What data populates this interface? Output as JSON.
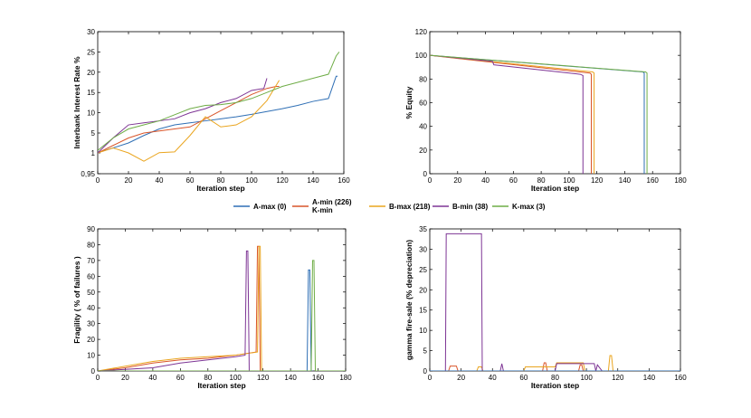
{
  "colors": {
    "A-max": "#2f6fb5",
    "A-min": "#d9552a",
    "B-max": "#eaa51f",
    "B-min": "#7e3595",
    "K-max": "#6fad47"
  },
  "legend": {
    "items": [
      {
        "key": "A-max",
        "label": "A-max (0)"
      },
      {
        "key": "A-min",
        "label": "A-min (226)",
        "label2": "K-min"
      },
      {
        "key": "B-max",
        "label": "B-max (218)"
      },
      {
        "key": "B-min",
        "label": "B-min (38)"
      },
      {
        "key": "K-max",
        "label": "K-max (3)"
      }
    ]
  },
  "chart_data": [
    {
      "id": "interest",
      "type": "line",
      "xlabel": "Iteration step",
      "ylabel": "Interbank Interest Rate %",
      "xlim": [
        0,
        160
      ],
      "xticks": [
        0,
        20,
        40,
        60,
        80,
        100,
        120,
        140,
        160
      ],
      "y_tick_labels": [
        "0,95",
        "1",
        "5",
        "10",
        "15",
        "20",
        "25",
        "30"
      ],
      "series": [
        {
          "name": "A-max",
          "x": [
            0,
            10,
            20,
            30,
            40,
            50,
            60,
            70,
            80,
            90,
            100,
            110,
            120,
            130,
            140,
            150,
            155,
            156
          ],
          "y": [
            1.05,
            2.0,
            3.0,
            4.5,
            6.0,
            7.0,
            7.5,
            8.0,
            8.5,
            9.0,
            9.6,
            10.3,
            11.0,
            11.8,
            12.8,
            13.5,
            19.0,
            19.0
          ]
        },
        {
          "name": "A-min",
          "x": [
            0,
            10,
            20,
            30,
            40,
            50,
            60,
            70,
            80,
            90,
            100,
            110,
            116,
            118
          ],
          "y": [
            1.0,
            2.5,
            4.0,
            5.0,
            5.5,
            6.0,
            6.5,
            8.5,
            10.5,
            12.5,
            14.5,
            16.0,
            16.5,
            16.5
          ]
        },
        {
          "name": "B-max",
          "x": [
            0,
            10,
            20,
            30,
            40,
            50,
            60,
            70,
            80,
            90,
            100,
            110,
            118
          ],
          "y": [
            1.0,
            2.0,
            1.0,
            0.98,
            1.05,
            1.2,
            4.5,
            9.0,
            6.5,
            7.0,
            9.0,
            13.0,
            18.0
          ]
        },
        {
          "name": "B-min",
          "x": [
            0,
            10,
            20,
            30,
            40,
            50,
            60,
            70,
            80,
            90,
            100,
            108,
            110
          ],
          "y": [
            1.0,
            4.0,
            7.0,
            7.5,
            8.0,
            8.5,
            10.0,
            11.0,
            12.5,
            13.5,
            15.5,
            16.0,
            18.5
          ]
        },
        {
          "name": "K-max",
          "x": [
            0,
            10,
            20,
            30,
            40,
            50,
            60,
            70,
            80,
            90,
            100,
            110,
            120,
            130,
            140,
            150,
            155,
            157
          ],
          "y": [
            1.5,
            4.0,
            6.0,
            7.0,
            8.0,
            9.5,
            11.0,
            11.8,
            12.0,
            12.5,
            13.5,
            15.0,
            16.5,
            17.5,
            18.5,
            19.5,
            24.0,
            25.0
          ]
        }
      ]
    },
    {
      "id": "equity",
      "type": "line",
      "xlabel": "Iteration step",
      "ylabel": "% Equity",
      "xlim": [
        0,
        180
      ],
      "ylim": [
        0,
        120
      ],
      "xticks": [
        0,
        20,
        40,
        60,
        80,
        100,
        120,
        140,
        160,
        180
      ],
      "yticks": [
        0,
        20,
        40,
        60,
        80,
        100,
        120
      ],
      "series": [
        {
          "name": "A-max",
          "x": [
            0,
            153,
            154,
            154
          ],
          "y": [
            100,
            86,
            85,
            0
          ]
        },
        {
          "name": "A-min",
          "x": [
            0,
            115,
            116,
            116
          ],
          "y": [
            100,
            85,
            84,
            0
          ]
        },
        {
          "name": "B-max",
          "x": [
            0,
            117,
            118,
            118
          ],
          "y": [
            100,
            86,
            85,
            0
          ]
        },
        {
          "name": "B-min",
          "x": [
            0,
            45,
            46,
            108,
            110,
            110
          ],
          "y": [
            100,
            95,
            92,
            84,
            83,
            0
          ]
        },
        {
          "name": "K-max",
          "x": [
            0,
            155,
            156,
            156
          ],
          "y": [
            100,
            86,
            85,
            0
          ]
        }
      ]
    },
    {
      "id": "fragility",
      "type": "line",
      "xlabel": "Iteration step",
      "ylabel": "Fragility  ( % of failures )",
      "xlim": [
        0,
        180
      ],
      "ylim": [
        0,
        90
      ],
      "xticks": [
        0,
        20,
        40,
        60,
        80,
        100,
        120,
        140,
        160,
        180
      ],
      "yticks": [
        0,
        10,
        20,
        30,
        40,
        50,
        60,
        70,
        80,
        90
      ],
      "series": [
        {
          "name": "A-max",
          "x": [
            0,
            152,
            153,
            154,
            155,
            156
          ],
          "y": [
            0,
            0,
            64,
            64,
            0,
            0
          ]
        },
        {
          "name": "A-min",
          "x": [
            0,
            20,
            40,
            60,
            80,
            100,
            115,
            116,
            117,
            118
          ],
          "y": [
            0,
            2,
            5,
            7,
            8,
            10,
            12,
            79,
            79,
            0
          ]
        },
        {
          "name": "B-max",
          "x": [
            0,
            20,
            40,
            60,
            80,
            100,
            116,
            117,
            118,
            119
          ],
          "y": [
            0,
            3,
            6,
            8,
            9,
            10,
            12,
            79,
            79,
            0
          ]
        },
        {
          "name": "B-min",
          "x": [
            0,
            20,
            40,
            60,
            80,
            100,
            107,
            108,
            109,
            110
          ],
          "y": [
            0,
            1,
            2,
            5,
            7,
            9,
            10,
            76,
            76,
            0
          ]
        },
        {
          "name": "K-max",
          "x": [
            0,
            155,
            156,
            157,
            158,
            160,
            180
          ],
          "y": [
            0,
            0,
            70,
            70,
            0,
            0,
            0
          ]
        }
      ]
    },
    {
      "id": "gamma",
      "type": "line",
      "xlabel": "Iteration step",
      "ylabel": "gamma fire-sale (% depreciation)",
      "xlim": [
        0,
        160
      ],
      "ylim": [
        0,
        35
      ],
      "xticks": [
        0,
        20,
        40,
        60,
        80,
        100,
        120,
        140,
        160
      ],
      "yticks": [
        0,
        5,
        10,
        15,
        20,
        25,
        30,
        35
      ],
      "series": [
        {
          "name": "K-max",
          "x": [
            0,
            160
          ],
          "y": [
            0,
            0
          ]
        },
        {
          "name": "A-min",
          "x": [
            0,
            12,
            13,
            17,
            18,
            72,
            73,
            74,
            75,
            95,
            96,
            97,
            98,
            120
          ],
          "y": [
            0,
            0,
            1.2,
            1.2,
            0,
            0,
            2,
            2,
            0,
            0,
            1.5,
            1.5,
            0,
            0
          ]
        },
        {
          "name": "B-max",
          "x": [
            0,
            30,
            31,
            33,
            34,
            60,
            61,
            80,
            81,
            98,
            99,
            114,
            115,
            116,
            117,
            160
          ],
          "y": [
            0,
            0,
            1,
            1,
            0,
            0,
            1,
            1,
            2,
            2,
            0,
            0,
            3.8,
            3.8,
            0,
            0
          ]
        },
        {
          "name": "B-min",
          "x": [
            0,
            10,
            10.5,
            33,
            33.5,
            45,
            46,
            47,
            80,
            81,
            105,
            106,
            107,
            110
          ],
          "y": [
            0,
            0,
            33.8,
            33.8,
            0,
            0,
            1.8,
            0,
            0,
            1.8,
            1.8,
            0,
            1.5,
            0
          ]
        },
        {
          "name": "A-max",
          "x": [
            0,
            160
          ],
          "y": [
            0,
            0
          ]
        }
      ]
    }
  ]
}
